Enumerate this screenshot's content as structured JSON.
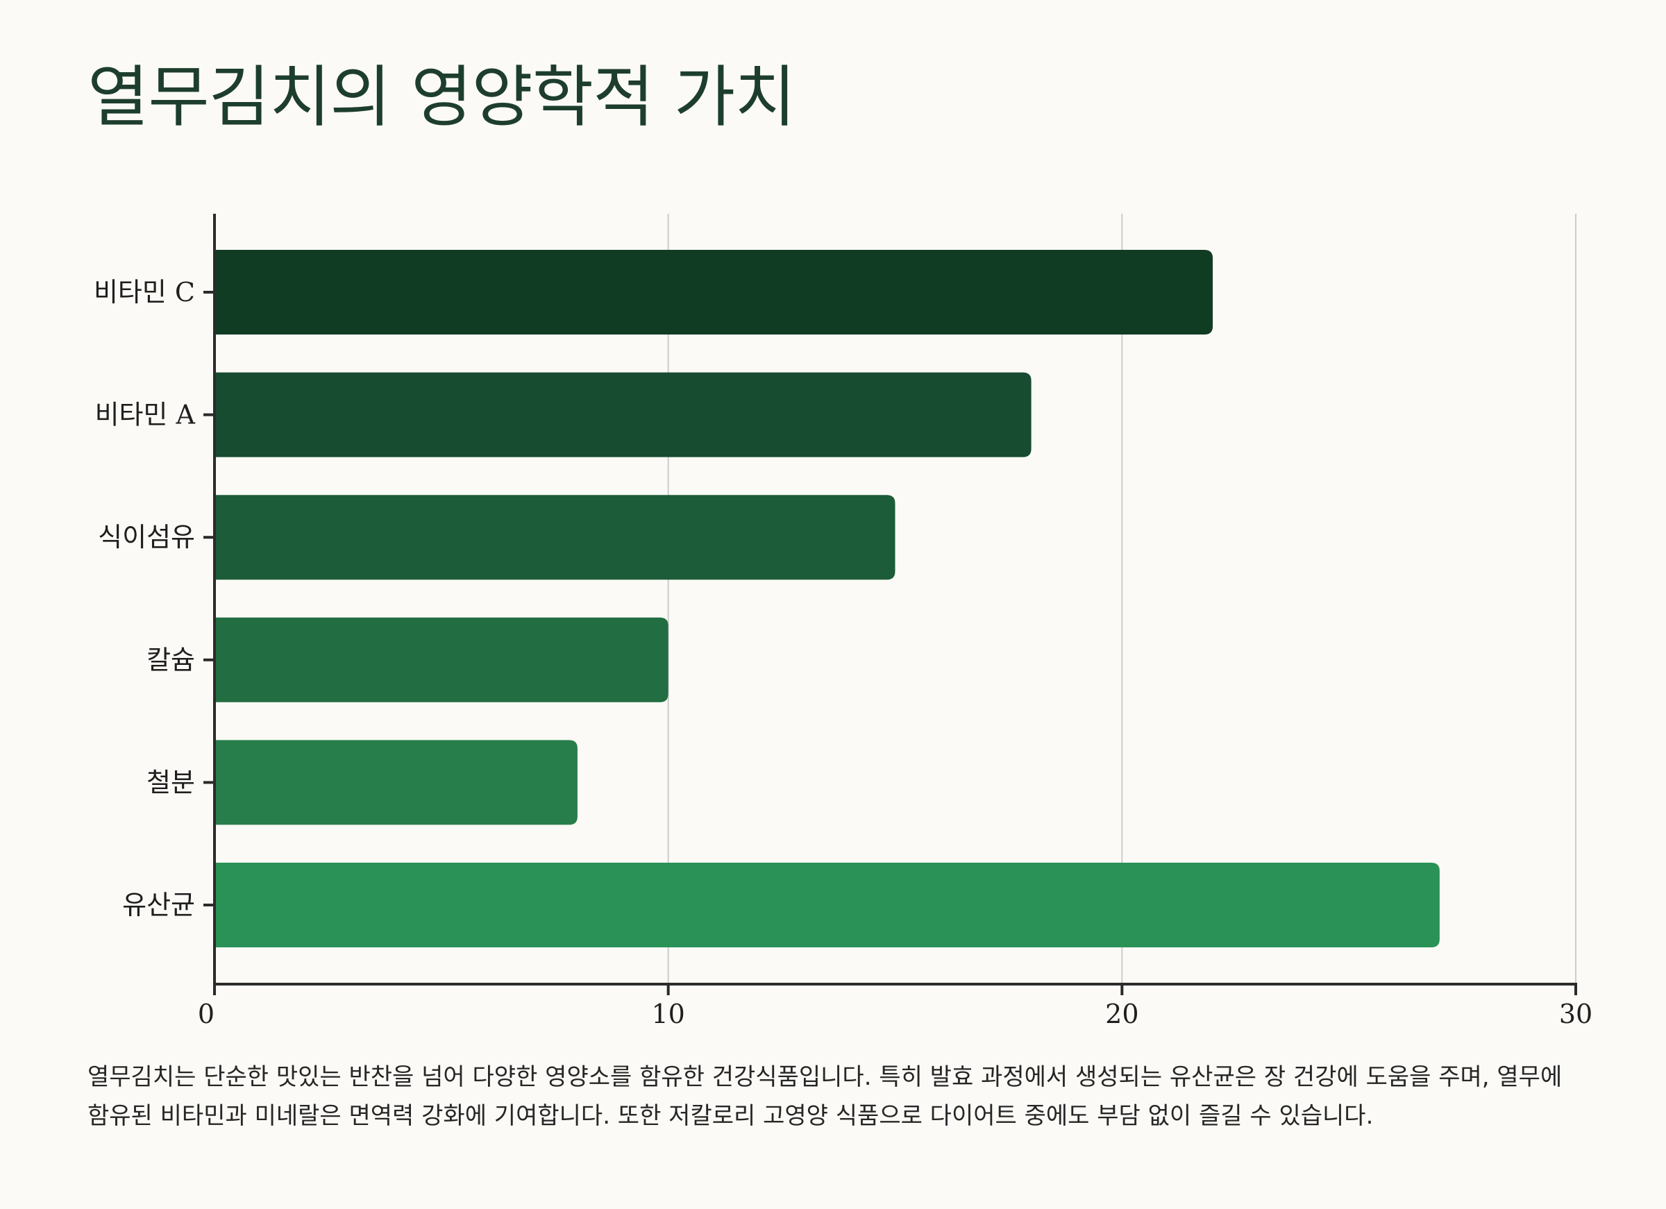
{
  "title": "열무김치의 영양학적 가치",
  "description": "열무김치는 단순한 맛있는 반찬을 넘어 다양한 영양소를 함유한 건강식품입니다. 특히 발효 과정에서 생성되는 유산균은 장 건강에 도움을 주며, 열무에 함유된 비타민과 미네랄은 면역력 강화에 기여합니다. 또한 저칼로리 고영양 식품으로 다이어트 중에도 부담 없이 즐길 수 있습니다.",
  "chart_data": {
    "type": "bar",
    "orientation": "horizontal",
    "categories": [
      "비타민 C",
      "비타민 A",
      "식이섬유",
      "칼슘",
      "철분",
      "유산균"
    ],
    "values": [
      22,
      18,
      15,
      10,
      8,
      27
    ],
    "bar_colors": [
      "#113c24",
      "#174c30",
      "#1c5c38",
      "#226d41",
      "#277e4a",
      "#2b9257"
    ],
    "xlim": [
      0,
      30
    ],
    "xticks": [
      0,
      10,
      20,
      30
    ],
    "grid": "vertical",
    "title": "",
    "xlabel": "",
    "ylabel": ""
  },
  "colors": {
    "background": "#fbfaf6",
    "title": "#1e3e2d",
    "axis": "#2b2b2b",
    "grid": "#cccccc"
  }
}
